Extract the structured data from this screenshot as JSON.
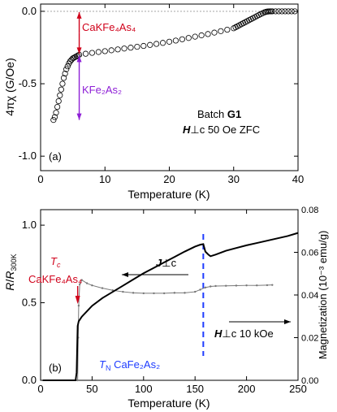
{
  "chart_data": [
    {
      "panel": "(a)",
      "type": "scatter",
      "xlabel": "Temperature (K)",
      "ylabel": "4πχ (G/Oe)",
      "xlim": [
        0,
        40
      ],
      "ylim": [
        -1.1,
        0.05
      ],
      "xticks": [
        0,
        10,
        20,
        30,
        40
      ],
      "yticks": [
        0.0,
        -0.5,
        -1.0
      ],
      "ytick_labels": [
        "0.0",
        "-0.5",
        "-1.0"
      ],
      "grid": false,
      "reference_line_y": 0.0,
      "series": [
        {
          "marker": "open-circle",
          "x": [
            2.0,
            2.2,
            2.4,
            2.6,
            2.8,
            3.0,
            3.2,
            3.4,
            3.6,
            3.8,
            4.0,
            4.2,
            4.4,
            4.6,
            4.8,
            5.0,
            5.2,
            5.4,
            5.6,
            5.8,
            6.0,
            7,
            8,
            9,
            10,
            11,
            12,
            13,
            14,
            15,
            16,
            17,
            18,
            19,
            20,
            21,
            22,
            23,
            24,
            25,
            26,
            27,
            28,
            29,
            30,
            30.3,
            30.6,
            30.9,
            31.2,
            31.5,
            31.8,
            32.1,
            32.4,
            32.7,
            33.0,
            33.3,
            33.6,
            33.9,
            34.2,
            34.5,
            34.8,
            35.0,
            35.2,
            35.4,
            35.6,
            35.8,
            36,
            36.5,
            37,
            37.5,
            38,
            38.5,
            39,
            39.5
          ],
          "y": [
            -0.75,
            -0.73,
            -0.7,
            -0.66,
            -0.62,
            -0.58,
            -0.54,
            -0.5,
            -0.46,
            -0.43,
            -0.4,
            -0.38,
            -0.36,
            -0.345,
            -0.335,
            -0.325,
            -0.32,
            -0.315,
            -0.31,
            -0.305,
            -0.3,
            -0.293,
            -0.287,
            -0.281,
            -0.275,
            -0.269,
            -0.263,
            -0.257,
            -0.251,
            -0.245,
            -0.239,
            -0.232,
            -0.225,
            -0.218,
            -0.21,
            -0.202,
            -0.193,
            -0.184,
            -0.175,
            -0.166,
            -0.157,
            -0.147,
            -0.137,
            -0.127,
            -0.117,
            -0.11,
            -0.103,
            -0.096,
            -0.089,
            -0.082,
            -0.075,
            -0.068,
            -0.061,
            -0.054,
            -0.047,
            -0.04,
            -0.033,
            -0.026,
            -0.019,
            -0.013,
            -0.007,
            -0.004,
            -0.002,
            -0.001,
            0.0,
            0.0,
            0.0,
            0.0,
            0.0,
            0.0,
            0.0,
            0.0,
            0.0,
            0.0
          ]
        }
      ],
      "annotations": {
        "arrow_top_label": "CaKFe₄As₄",
        "arrow_bottom_label": "KFe₂As₂",
        "arrow_x": 6.0,
        "arrow_top_y": 0.0,
        "arrow_split_y": -0.3,
        "arrow_bottom_y": -0.75,
        "color_top": "#d0021b",
        "color_bottom": "#8e1fd6",
        "batch_prefix": "Batch ",
        "batch_name": "G1",
        "field_H": "H",
        "field_perp": "⊥",
        "field_c": "c",
        "field_rest": " 50 Oe ZFC"
      }
    },
    {
      "panel": "(b)",
      "type": "line",
      "xlabel": "Temperature (K)",
      "ylabel_left_main": "R",
      "ylabel_left_sep": "/",
      "ylabel_left_denom": "R",
      "ylabel_left_sub": "300K",
      "ylabel_right": "Magnetization (10⁻³ emu/g)",
      "xlim": [
        0,
        250
      ],
      "ylim_left": [
        0,
        1.1
      ],
      "ylim_right": [
        0,
        0.08
      ],
      "xticks": [
        0,
        50,
        100,
        150,
        200,
        250
      ],
      "yticks_left": [
        0.0,
        0.5,
        1.0
      ],
      "ytick_labels_left": [
        "0.0",
        "0.5",
        "1.0"
      ],
      "yticks_right": [
        0.0,
        0.02,
        0.04,
        0.06,
        0.08
      ],
      "ytick_labels_right": [
        "0.00",
        "0.02",
        "0.04",
        "0.06",
        "0.08"
      ],
      "grid": false,
      "resistance": {
        "axis": "left",
        "x": [
          2,
          10,
          20,
          30,
          34,
          35,
          35.5,
          36,
          37,
          40,
          50,
          60,
          70,
          80,
          90,
          100,
          110,
          120,
          130,
          140,
          150,
          155,
          158,
          160,
          163,
          165,
          170,
          180,
          190,
          200,
          210,
          220,
          230,
          240,
          250
        ],
        "y": [
          0,
          0,
          0,
          0,
          0,
          0.05,
          0.2,
          0.35,
          0.38,
          0.41,
          0.48,
          0.53,
          0.57,
          0.61,
          0.65,
          0.69,
          0.725,
          0.76,
          0.795,
          0.83,
          0.862,
          0.874,
          0.878,
          0.83,
          0.81,
          0.8,
          0.81,
          0.835,
          0.853,
          0.87,
          0.885,
          0.9,
          0.915,
          0.93,
          0.95
        ]
      },
      "magnetization": {
        "axis": "right",
        "x": [
          36,
          36.5,
          37,
          38,
          40,
          45,
          50,
          60,
          70,
          80,
          90,
          100,
          110,
          120,
          130,
          140,
          150,
          155,
          160,
          165,
          170,
          180,
          190,
          200,
          210,
          220,
          225
        ],
        "y": [
          0.0,
          0.02,
          0.035,
          0.045,
          0.047,
          0.0455,
          0.0445,
          0.0432,
          0.0422,
          0.0415,
          0.041,
          0.0408,
          0.0408,
          0.0408,
          0.041,
          0.041,
          0.0415,
          0.0425,
          0.0435,
          0.044,
          0.0442,
          0.0443,
          0.0444,
          0.0445,
          0.0445,
          0.0446,
          0.0447
        ]
      },
      "tn_line_x": 158,
      "annotations": {
        "tc_label": "T",
        "tc_sub": "c",
        "tc_compound": "CaKFe₄As₄",
        "tc_color": "#d0021b",
        "tn_label": "T",
        "tn_sub": "N",
        "tn_compound": " CaFe₂As₂",
        "tn_color": "#1e3cff",
        "j_label": "J",
        "j_perp": "⊥",
        "j_c": "c",
        "h_label": "H",
        "h_perp": "⊥",
        "h_c": "c",
        "h_rest": " 10 kOe"
      }
    }
  ]
}
